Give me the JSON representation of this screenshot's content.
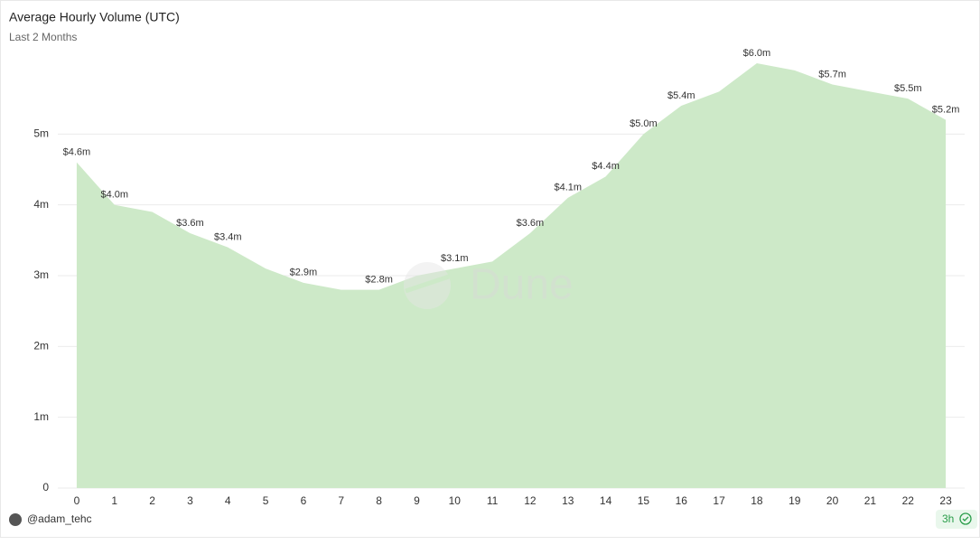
{
  "chart_data": {
    "type": "area",
    "title": "Average Hourly Volume (UTC)",
    "subtitle": "Last 2 Months",
    "x": [
      0,
      1,
      2,
      3,
      4,
      5,
      6,
      7,
      8,
      9,
      10,
      11,
      12,
      13,
      14,
      15,
      16,
      17,
      18,
      19,
      20,
      21,
      22,
      23
    ],
    "values": [
      4600000,
      4000000,
      3900000,
      3600000,
      3400000,
      3100000,
      2900000,
      2800000,
      2800000,
      3000000,
      3100000,
      3200000,
      3600000,
      4100000,
      4400000,
      5000000,
      5400000,
      5600000,
      6000000,
      5900000,
      5700000,
      5600000,
      5500000,
      5200000
    ],
    "value_labels": [
      "$4.6m",
      "$4.0m",
      null,
      "$3.6m",
      "$3.4m",
      null,
      "$2.9m",
      null,
      "$2.8m",
      null,
      "$3.1m",
      null,
      "$3.6m",
      "$4.1m",
      "$4.4m",
      "$5.0m",
      "$5.4m",
      null,
      "$6.0m",
      null,
      "$5.7m",
      null,
      "$5.5m",
      "$5.2m"
    ],
    "color": "#cde9c8",
    "xlim": [
      -0.5,
      23.5
    ],
    "xticks": [
      0,
      1,
      2,
      3,
      4,
      5,
      6,
      7,
      8,
      9,
      10,
      11,
      12,
      13,
      14,
      15,
      16,
      17,
      18,
      19,
      20,
      21,
      22,
      23
    ],
    "ylim": [
      0,
      6000000
    ],
    "yticks": [
      0,
      {
        "value": 1000000,
        "label": "1m"
      },
      {
        "value": 2000000,
        "label": "2m"
      },
      {
        "value": 3000000,
        "label": "3m"
      },
      {
        "value": 4000000,
        "label": "4m"
      },
      {
        "value": 5000000,
        "label": "5m"
      }
    ],
    "grid": true,
    "watermark": "Dune",
    "author": "@adam_tehc",
    "refresh": "3h"
  }
}
